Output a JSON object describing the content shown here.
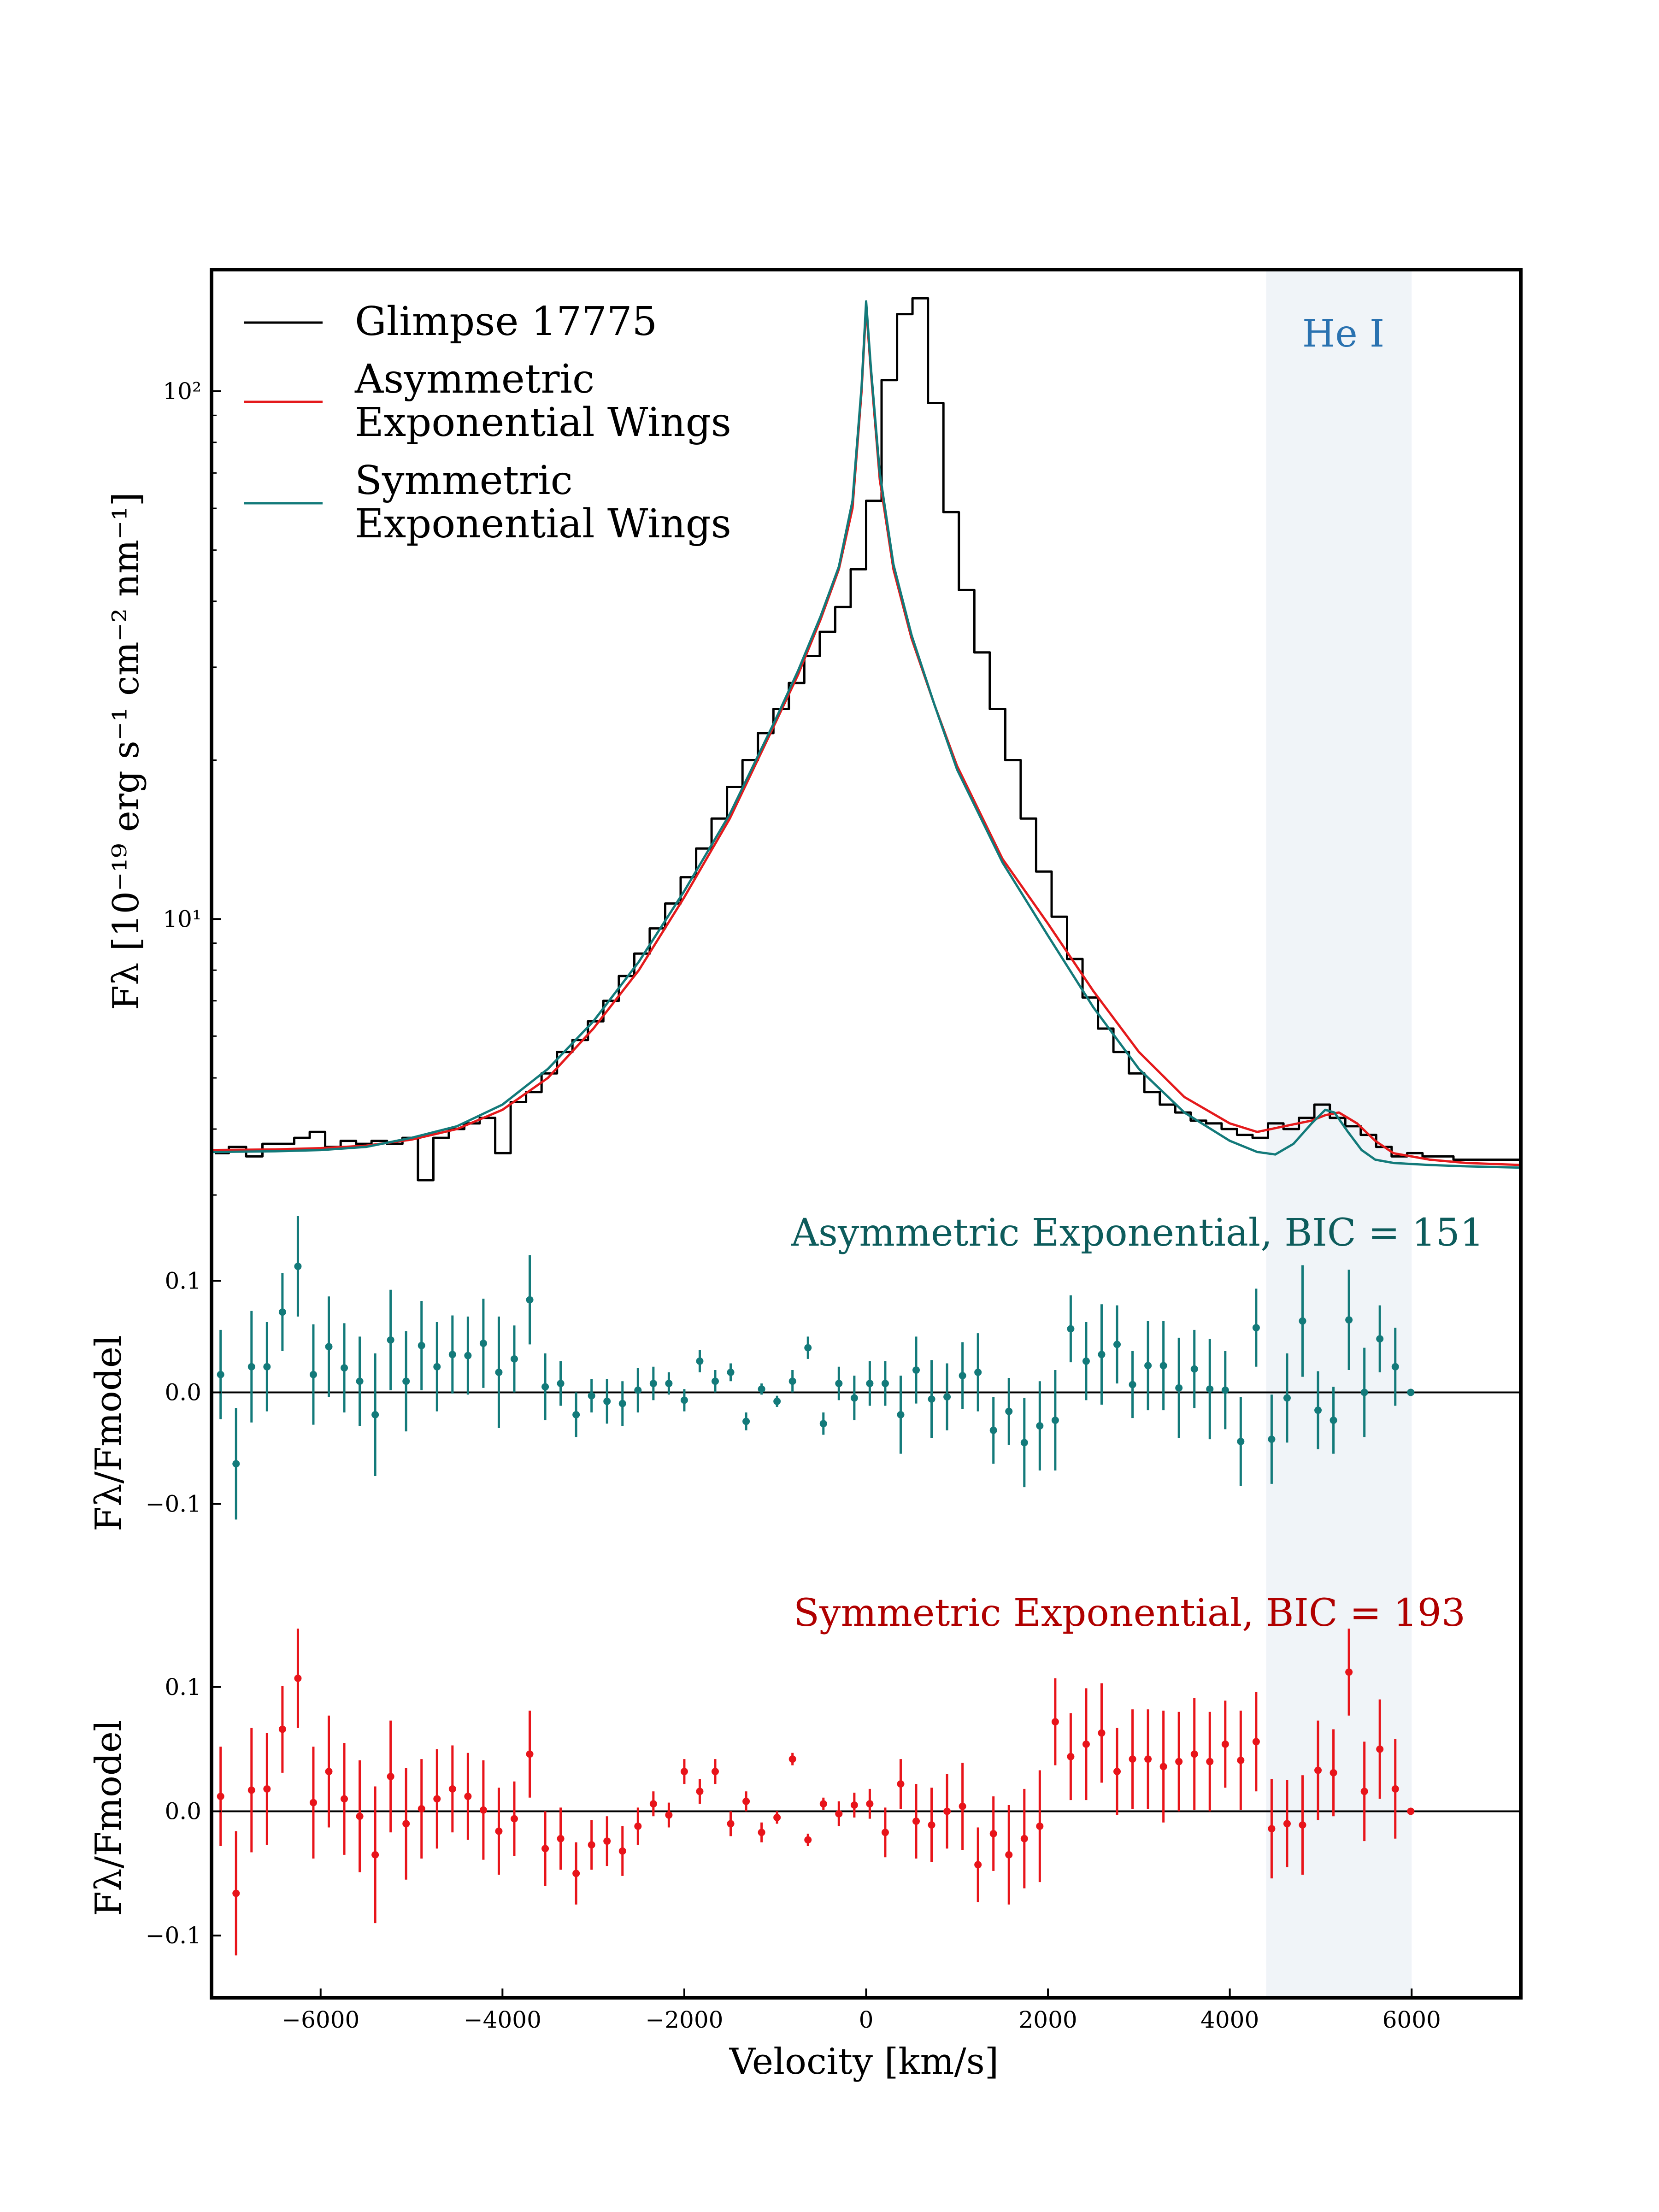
{
  "chart_data": {
    "type": "line",
    "xlabel": "Velocity [km/s]",
    "xlim": [
      -7200,
      7200
    ],
    "xticks": [
      {
        "value": -6000,
        "label": "−6000"
      },
      {
        "value": -4000,
        "label": "−4000"
      },
      {
        "value": -2000,
        "label": "−2000"
      },
      {
        "value": 0,
        "label": "0"
      },
      {
        "value": 2000,
        "label": "2000"
      },
      {
        "value": 4000,
        "label": "4000"
      },
      {
        "value": 6000,
        "label": "6000"
      }
    ],
    "shaded_region": {
      "label": "He I",
      "x_range": [
        4400,
        6000
      ],
      "color": "#e3ebf2"
    },
    "colors": {
      "observed": "#000000",
      "asymmetric": "#e41a1c",
      "symmetric": "#137a7a",
      "residual_asym": "#137a7a",
      "residual_sym": "#e8141a",
      "asym_title": "#0d5c5c",
      "sym_title": "#b00000",
      "he_label": "#2a72b0"
    },
    "top_panel": {
      "ylabel": "Fλ [10⁻¹⁹ erg s⁻¹ cm⁻² nm⁻¹]",
      "yscale": "log",
      "ylim": [
        2.9,
        170
      ],
      "yticks": [
        {
          "value": 10,
          "label": "10¹"
        },
        {
          "value": 100,
          "label": "10²"
        }
      ],
      "legend_location": "upper-left",
      "legend": [
        {
          "lines": [
            "Glimpse 17775"
          ]
        },
        {
          "lines": [
            "Asymmetric",
            "Exponential Wings"
          ]
        },
        {
          "lines": [
            "Symmetric",
            "Exponential Wings"
          ]
        }
      ],
      "he_label": "He I",
      "series": [
        {
          "name": "Glimpse 17775",
          "style": "steps",
          "x": [
            -7160,
            -7010,
            -6820,
            -6640,
            -6460,
            -6290,
            -6120,
            -5950,
            -5780,
            -5610,
            -5440,
            -5270,
            -5100,
            -4930,
            -4760,
            -4590,
            -4420,
            -4250,
            -4080,
            -3910,
            -3740,
            -3570,
            -3400,
            -3230,
            -3060,
            -2890,
            -2720,
            -2550,
            -2380,
            -2210,
            -2040,
            -1870,
            -1700,
            -1530,
            -1360,
            -1190,
            -1020,
            -850,
            -680,
            -510,
            -340,
            -170,
            0,
            170,
            340,
            510,
            680,
            850,
            1020,
            1190,
            1360,
            1530,
            1700,
            1870,
            2040,
            2210,
            2380,
            2550,
            2720,
            2890,
            3060,
            3230,
            3400,
            3570,
            3740,
            3910,
            4080,
            4250,
            4420,
            4590,
            4760,
            4930,
            5100,
            5270,
            5440,
            5610,
            5780,
            5950,
            6120,
            6290,
            6460,
            6630,
            6800,
            7200
          ],
          "y": [
            3.6,
            3.7,
            3.55,
            3.75,
            3.75,
            3.85,
            3.95,
            3.7,
            3.8,
            3.75,
            3.8,
            3.75,
            3.85,
            3.2,
            3.85,
            4.0,
            4.1,
            4.2,
            3.6,
            4.5,
            4.7,
            5.1,
            5.6,
            5.9,
            6.4,
            7.0,
            7.8,
            8.6,
            9.6,
            10.7,
            12.0,
            13.6,
            15.5,
            17.8,
            20.0,
            22.5,
            25.0,
            28.0,
            31.5,
            35.0,
            39.0,
            46.0,
            62.0,
            105.0,
            140.0,
            150.0,
            95.0,
            59.0,
            42.0,
            32.0,
            25.0,
            20.0,
            15.5,
            12.3,
            10.1,
            8.4,
            7.1,
            6.2,
            5.6,
            5.1,
            4.7,
            4.45,
            4.3,
            4.15,
            4.1,
            4.0,
            3.9,
            3.85,
            4.1,
            4.0,
            4.2,
            4.45,
            4.2,
            4.05,
            3.9,
            3.7,
            3.55,
            3.6,
            3.55,
            3.55,
            3.5,
            3.5,
            3.5,
            3.5
          ]
        },
        {
          "name": "Asymmetric Exponential Wings",
          "style": "line",
          "x": [
            -7200,
            -6500,
            -6000,
            -5500,
            -5000,
            -4500,
            -4000,
            -3500,
            -3000,
            -2500,
            -2000,
            -1500,
            -1000,
            -750,
            -500,
            -300,
            -150,
            -50,
            0,
            50,
            150,
            300,
            500,
            750,
            1000,
            1500,
            2000,
            2500,
            3000,
            3500,
            4000,
            4300,
            4600,
            4900,
            5050,
            5200,
            5400,
            5600,
            5800,
            6200,
            6600,
            7200
          ],
          "y": [
            3.65,
            3.66,
            3.68,
            3.72,
            3.82,
            4.0,
            4.35,
            5.0,
            6.2,
            8.0,
            11.0,
            15.5,
            23.5,
            29.0,
            37.0,
            46.0,
            60.0,
            100.0,
            145.0,
            110.0,
            68.0,
            46.0,
            34.0,
            25.5,
            19.5,
            13.0,
            9.8,
            7.3,
            5.6,
            4.6,
            4.1,
            3.95,
            4.05,
            4.15,
            4.25,
            4.3,
            4.1,
            3.8,
            3.6,
            3.5,
            3.45,
            3.42
          ]
        },
        {
          "name": "Symmetric Exponential Wings",
          "style": "line",
          "x": [
            -7200,
            -6500,
            -6000,
            -5500,
            -5000,
            -4500,
            -4000,
            -3500,
            -3000,
            -2500,
            -2000,
            -1500,
            -1000,
            -750,
            -500,
            -300,
            -150,
            -50,
            0,
            50,
            150,
            300,
            500,
            750,
            1000,
            1500,
            2000,
            2500,
            3000,
            3500,
            4000,
            4300,
            4500,
            4700,
            4900,
            5050,
            5150,
            5300,
            5450,
            5600,
            5800,
            6200,
            6600,
            7200
          ],
          "y": [
            3.62,
            3.63,
            3.65,
            3.7,
            3.85,
            4.05,
            4.45,
            5.2,
            6.4,
            8.3,
            11.3,
            15.8,
            23.8,
            29.5,
            37.5,
            46.5,
            62.0,
            102.0,
            148.0,
            112.0,
            70.0,
            47.0,
            34.5,
            25.5,
            19.2,
            12.8,
            9.3,
            6.8,
            5.2,
            4.3,
            3.8,
            3.62,
            3.58,
            3.75,
            4.1,
            4.35,
            4.3,
            3.95,
            3.65,
            3.5,
            3.45,
            3.42,
            3.4,
            3.38
          ]
        }
      ]
    },
    "middle_panel": {
      "ylabel": "Fλ/Fmodel",
      "title": "Asymmetric Exponential, BIC = 151",
      "ylim": [
        -0.175,
        0.17
      ],
      "yticks": [
        {
          "value": 0.1,
          "label": "0.1"
        },
        {
          "value": 0.0,
          "label": "0.0"
        },
        {
          "value": -0.1,
          "label": "−0.1"
        }
      ],
      "x": [
        -7100,
        -6930,
        -6760,
        -6590,
        -6420,
        -6250,
        -6080,
        -5910,
        -5740,
        -5570,
        -5400,
        -5230,
        -5060,
        -4890,
        -4720,
        -4550,
        -4380,
        -4210,
        -4040,
        -3870,
        -3700,
        -3530,
        -3360,
        -3190,
        -3020,
        -2850,
        -2680,
        -2510,
        -2340,
        -2170,
        -2000,
        -1830,
        -1660,
        -1490,
        -1320,
        -1150,
        -980,
        -810,
        -640,
        -470,
        -300,
        -130,
        40,
        210,
        380,
        550,
        720,
        890,
        1060,
        1230,
        1400,
        1570,
        1740,
        1910,
        2080,
        2250,
        2420,
        2590,
        2760,
        2930,
        3100,
        3270,
        3440,
        3610,
        3780,
        3950,
        4120,
        4290,
        4460,
        4630,
        4800,
        4970,
        5140,
        5310,
        5480,
        5650,
        5820,
        5990
      ],
      "y": [
        0.016,
        -0.064,
        0.023,
        0.023,
        0.072,
        0.113,
        0.016,
        0.041,
        0.022,
        0.01,
        -0.02,
        0.047,
        0.01,
        0.042,
        0.023,
        0.034,
        0.033,
        0.044,
        0.018,
        0.03,
        0.083,
        0.005,
        0.008,
        -0.02,
        -0.003,
        -0.008,
        -0.01,
        0.002,
        0.008,
        0.008,
        -0.007,
        0.028,
        0.01,
        0.018,
        -0.026,
        0.003,
        -0.008,
        0.01,
        0.04,
        -0.028,
        0.008,
        -0.005,
        0.008,
        0.008,
        -0.02,
        0.02,
        -0.006,
        -0.004,
        0.015,
        0.018,
        -0.034,
        -0.017,
        -0.045,
        -0.03,
        -0.025,
        0.057,
        0.028,
        0.034,
        0.043,
        0.007,
        0.024,
        0.024,
        0.004,
        0.021,
        0.003,
        0.002,
        -0.044,
        0.058,
        -0.042,
        -0.005,
        0.064,
        -0.016,
        -0.025,
        0.065,
        0.0,
        0.048,
        0.023,
        0.0
      ],
      "yerr": [
        0.04,
        0.05,
        0.05,
        0.04,
        0.035,
        0.045,
        0.045,
        0.045,
        0.04,
        0.04,
        0.055,
        0.045,
        0.045,
        0.04,
        0.04,
        0.035,
        0.035,
        0.04,
        0.05,
        0.03,
        0.04,
        0.03,
        0.02,
        0.02,
        0.015,
        0.02,
        0.02,
        0.02,
        0.015,
        0.01,
        0.01,
        0.01,
        0.01,
        0.008,
        0.008,
        0.005,
        0.005,
        0.01,
        0.01,
        0.01,
        0.015,
        0.02,
        0.02,
        0.02,
        0.035,
        0.03,
        0.035,
        0.03,
        0.03,
        0.035,
        0.03,
        0.03,
        0.04,
        0.04,
        0.045,
        0.03,
        0.035,
        0.045,
        0.035,
        0.03,
        0.04,
        0.04,
        0.045,
        0.035,
        0.045,
        0.035,
        0.04,
        0.035,
        0.04,
        0.04,
        0.05,
        0.035,
        0.03,
        0.045,
        0.04,
        0.03,
        0.035,
        0.0
      ]
    },
    "bottom_panel": {
      "ylabel": "Fλ/Fmodel",
      "title": "Symmetric Exponential, BIC = 193",
      "ylim": [
        -0.15,
        0.18
      ],
      "yticks": [
        {
          "value": 0.1,
          "label": "0.1"
        },
        {
          "value": 0.0,
          "label": "0.0"
        },
        {
          "value": -0.1,
          "label": "−0.1"
        }
      ],
      "x": [
        -7100,
        -6930,
        -6760,
        -6590,
        -6420,
        -6250,
        -6080,
        -5910,
        -5740,
        -5570,
        -5400,
        -5230,
        -5060,
        -4890,
        -4720,
        -4550,
        -4380,
        -4210,
        -4040,
        -3870,
        -3700,
        -3530,
        -3360,
        -3190,
        -3020,
        -2850,
        -2680,
        -2510,
        -2340,
        -2170,
        -2000,
        -1830,
        -1660,
        -1490,
        -1320,
        -1150,
        -980,
        -810,
        -640,
        -470,
        -300,
        -130,
        40,
        210,
        380,
        550,
        720,
        890,
        1060,
        1230,
        1400,
        1570,
        1740,
        1910,
        2080,
        2250,
        2420,
        2590,
        2760,
        2930,
        3100,
        3270,
        3440,
        3610,
        3780,
        3950,
        4120,
        4290,
        4460,
        4630,
        4800,
        4970,
        5140,
        5310,
        5480,
        5650,
        5820,
        5990
      ],
      "y": [
        0.012,
        -0.066,
        0.017,
        0.018,
        0.066,
        0.107,
        0.007,
        0.032,
        0.01,
        -0.004,
        -0.035,
        0.028,
        -0.01,
        0.002,
        0.01,
        0.018,
        0.012,
        0.001,
        -0.016,
        -0.006,
        0.046,
        -0.03,
        -0.022,
        -0.05,
        -0.027,
        -0.024,
        -0.032,
        -0.012,
        0.006,
        -0.003,
        0.032,
        0.016,
        0.032,
        -0.01,
        0.008,
        -0.017,
        -0.005,
        0.042,
        -0.023,
        0.006,
        -0.002,
        0.005,
        0.006,
        -0.017,
        0.022,
        -0.008,
        -0.011,
        0.0,
        0.004,
        -0.043,
        -0.018,
        -0.035,
        -0.022,
        -0.012,
        0.072,
        0.044,
        0.054,
        0.063,
        0.032,
        0.042,
        0.042,
        0.036,
        0.04,
        0.046,
        0.04,
        0.054,
        0.041,
        0.056,
        -0.014,
        -0.01,
        -0.011,
        0.033,
        0.031,
        0.112,
        0.016,
        0.05,
        0.018,
        0.0
      ],
      "yerr": [
        0.04,
        0.05,
        0.05,
        0.045,
        0.035,
        0.04,
        0.045,
        0.045,
        0.045,
        0.045,
        0.055,
        0.045,
        0.045,
        0.04,
        0.04,
        0.035,
        0.035,
        0.04,
        0.035,
        0.03,
        0.035,
        0.03,
        0.025,
        0.025,
        0.02,
        0.02,
        0.02,
        0.015,
        0.01,
        0.01,
        0.01,
        0.01,
        0.01,
        0.01,
        0.008,
        0.008,
        0.005,
        0.005,
        0.005,
        0.005,
        0.01,
        0.01,
        0.012,
        0.02,
        0.02,
        0.03,
        0.03,
        0.03,
        0.035,
        0.03,
        0.03,
        0.04,
        0.04,
        0.045,
        0.035,
        0.035,
        0.045,
        0.04,
        0.035,
        0.04,
        0.04,
        0.045,
        0.04,
        0.045,
        0.04,
        0.035,
        0.04,
        0.04,
        0.04,
        0.035,
        0.04,
        0.04,
        0.035,
        0.035,
        0.04,
        0.04,
        0.04,
        0.0
      ]
    }
  }
}
